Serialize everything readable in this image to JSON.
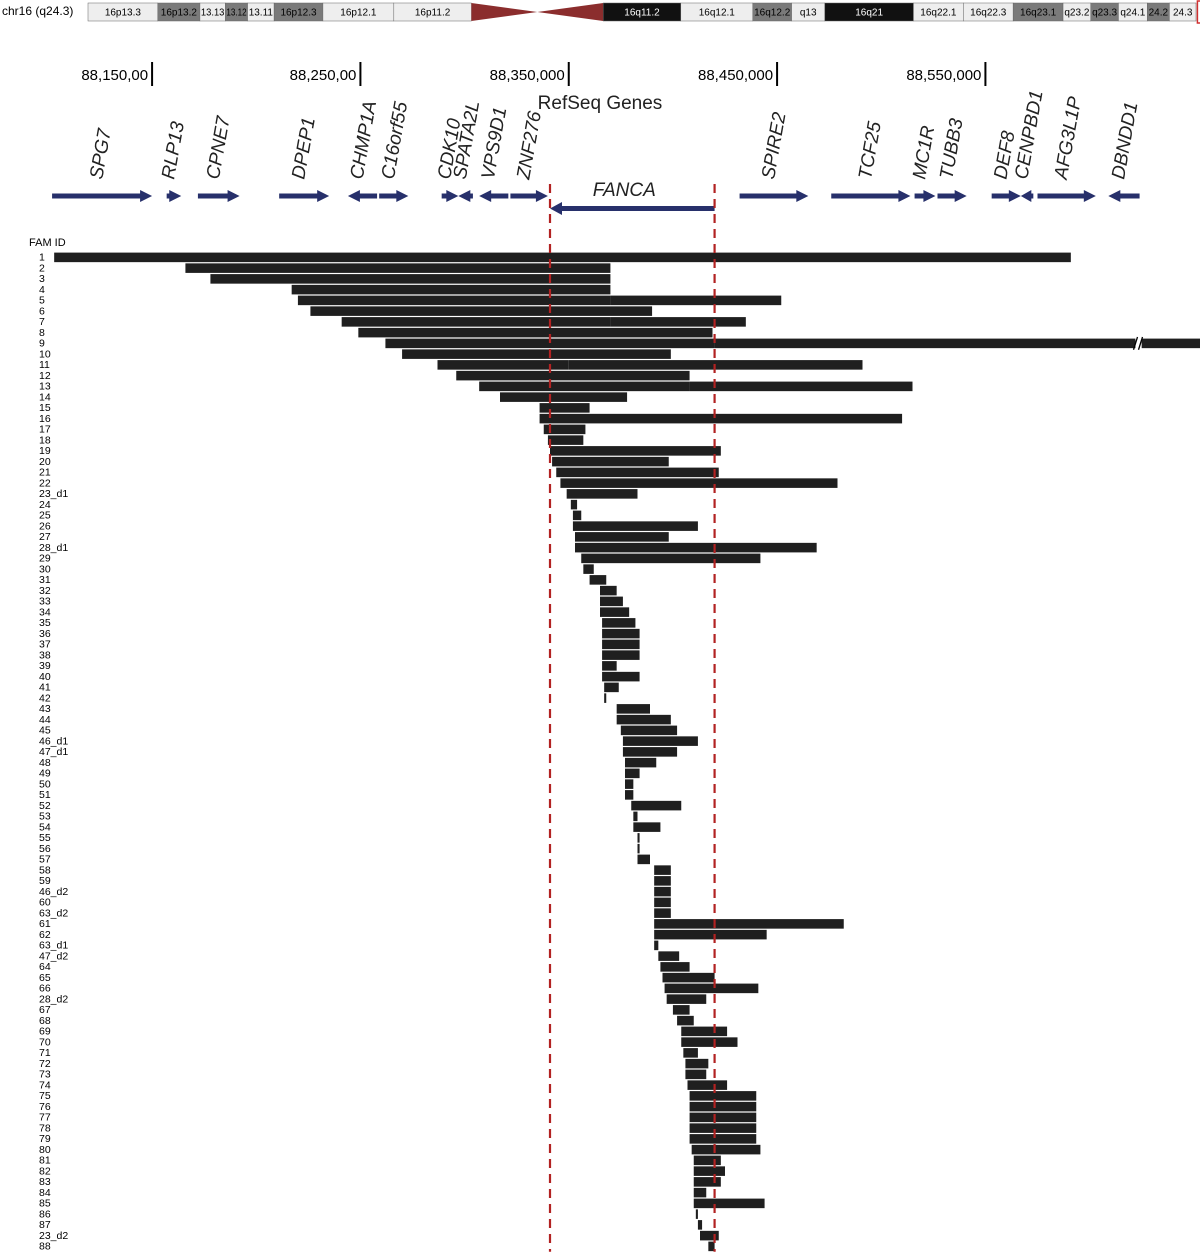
{
  "chart_data": {
    "type": "bar",
    "chromosome_label": "chr16 (q24.3)",
    "ideogram_bands": [
      {
        "name": "16p13.3",
        "start": 0,
        "end": 6.3,
        "stain": "white"
      },
      {
        "name": "16p13.2",
        "start": 6.3,
        "end": 10.1,
        "stain": "gray"
      },
      {
        "name": "13.13",
        "start": 10.1,
        "end": 12.4,
        "stain": "white"
      },
      {
        "name": "13.12",
        "start": 12.4,
        "end": 14.4,
        "stain": "gray"
      },
      {
        "name": "13.11",
        "start": 14.4,
        "end": 16.8,
        "stain": "white"
      },
      {
        "name": "16p12.3",
        "start": 16.8,
        "end": 21.2,
        "stain": "gray"
      },
      {
        "name": "16p12.1",
        "start": 21.2,
        "end": 27.6,
        "stain": "white"
      },
      {
        "name": "16p11.2",
        "start": 27.6,
        "end": 34.6,
        "stain": "white"
      },
      {
        "name": "",
        "start": 34.6,
        "end": 46.5,
        "stain": "centromere"
      },
      {
        "name": "16q11.2",
        "start": 46.5,
        "end": 53.5,
        "stain": "black"
      },
      {
        "name": "16q12.1",
        "start": 53.5,
        "end": 60.0,
        "stain": "white"
      },
      {
        "name": "16q12.2",
        "start": 60.0,
        "end": 63.5,
        "stain": "gray"
      },
      {
        "name": "q13",
        "start": 63.5,
        "end": 66.5,
        "stain": "white"
      },
      {
        "name": "16q21",
        "start": 66.5,
        "end": 74.5,
        "stain": "black"
      },
      {
        "name": "16q22.1",
        "start": 74.5,
        "end": 79.0,
        "stain": "white"
      },
      {
        "name": "16q22.3",
        "start": 79.0,
        "end": 83.5,
        "stain": "white"
      },
      {
        "name": "16q23.1",
        "start": 83.5,
        "end": 88.0,
        "stain": "gray"
      },
      {
        "name": "q23.2",
        "start": 88.0,
        "end": 90.5,
        "stain": "white"
      },
      {
        "name": "q23.3",
        "start": 90.5,
        "end": 93.0,
        "stain": "gray"
      },
      {
        "name": "q24.1",
        "start": 93.0,
        "end": 95.6,
        "stain": "white"
      },
      {
        "name": "24.2",
        "start": 95.6,
        "end": 97.6,
        "stain": "gray"
      },
      {
        "name": "24.3",
        "start": 97.6,
        "end": 100,
        "stain": "white"
      }
    ],
    "coordinate_ticks": [
      {
        "label": "88,150,00",
        "position": 88150000
      },
      {
        "label": "88,250,00",
        "position": 88250000
      },
      {
        "label": "88,350,000",
        "position": 88350000
      },
      {
        "label": "88,450,000",
        "position": 88450000
      },
      {
        "label": "88,550,000",
        "position": 88550000
      }
    ],
    "x_range": [
      88077000,
      88653000
    ],
    "track_title": "RefSeq Genes",
    "genes": [
      {
        "name": "SPG7",
        "start": 88102000,
        "end": 88150000,
        "strand": "+"
      },
      {
        "name": "RLP13",
        "start": 88157000,
        "end": 88164000,
        "strand": "+"
      },
      {
        "name": "CPNE7",
        "start": 88172000,
        "end": 88192000,
        "strand": "+"
      },
      {
        "name": "DPEP1",
        "start": 88211000,
        "end": 88235000,
        "strand": "+"
      },
      {
        "name": "CHMP1A",
        "start": 88244000,
        "end": 88258000,
        "strand": "-"
      },
      {
        "name": "C16orf55",
        "start": 88259000,
        "end": 88273000,
        "strand": "+"
      },
      {
        "name": "CDK10",
        "start": 88289000,
        "end": 88297000,
        "strand": "+"
      },
      {
        "name": "SPATA2L",
        "start": 88297000,
        "end": 88304000,
        "strand": "-"
      },
      {
        "name": "VPS9D1",
        "start": 88307000,
        "end": 88321000,
        "strand": "-"
      },
      {
        "name": "ZNF276",
        "start": 88322000,
        "end": 88340000,
        "strand": "+"
      },
      {
        "name": "FANCA",
        "start": 88341000,
        "end": 88420000,
        "strand": "-"
      },
      {
        "name": "SPIRE2",
        "start": 88432000,
        "end": 88465000,
        "strand": "+"
      },
      {
        "name": "TCF25",
        "start": 88476000,
        "end": 88514000,
        "strand": "+"
      },
      {
        "name": "MC1R",
        "start": 88516000,
        "end": 88526000,
        "strand": "+"
      },
      {
        "name": "TUBB3",
        "start": 88527000,
        "end": 88541000,
        "strand": "+"
      },
      {
        "name": "DEF8",
        "start": 88553000,
        "end": 88567000,
        "strand": "+"
      },
      {
        "name": "CENPBD1",
        "start": 88567000,
        "end": 88573000,
        "strand": "-"
      },
      {
        "name": "AFG3L1P",
        "start": 88575000,
        "end": 88603000,
        "strand": "+"
      },
      {
        "name": "DBNDD1",
        "start": 88609000,
        "end": 88624000,
        "strand": "-"
      }
    ],
    "reference_lines": [
      88341000,
      88420000
    ],
    "row_header": "FAM ID",
    "deletions": [
      {
        "id": "1",
        "segments": [
          [
            88103000,
            88591000
          ]
        ]
      },
      {
        "id": "2",
        "segments": [
          [
            88166000,
            88370000
          ]
        ]
      },
      {
        "id": "3",
        "segments": [
          [
            88178000,
            88370000
          ]
        ]
      },
      {
        "id": "4",
        "segments": [
          [
            88217000,
            88370000
          ]
        ]
      },
      {
        "id": "5",
        "segments": [
          [
            88220000,
            88370000
          ],
          [
            88370000,
            88452000
          ]
        ]
      },
      {
        "id": "6",
        "segments": [
          [
            88226000,
            88390000
          ]
        ]
      },
      {
        "id": "7",
        "segments": [
          [
            88241000,
            88370000
          ],
          [
            88370000,
            88435000
          ]
        ]
      },
      {
        "id": "8",
        "segments": [
          [
            88249000,
            88419000
          ]
        ]
      },
      {
        "id": "9",
        "segments": [
          [
            88262000,
            88420000
          ],
          [
            88420000,
            88622000
          ],
          [
            88625000,
            88653000
          ]
        ],
        "break_at": 88623000
      },
      {
        "id": "10",
        "segments": [
          [
            88270000,
            88399000
          ]
        ]
      },
      {
        "id": "11",
        "segments": [
          [
            88287000,
            88350000
          ],
          [
            88350000,
            88491000
          ]
        ]
      },
      {
        "id": "12",
        "segments": [
          [
            88296000,
            88408000
          ]
        ]
      },
      {
        "id": "13",
        "segments": [
          [
            88307000,
            88408000
          ],
          [
            88408000,
            88515000
          ]
        ]
      },
      {
        "id": "14",
        "segments": [
          [
            88317000,
            88378000
          ]
        ]
      },
      {
        "id": "15",
        "segments": [
          [
            88336000,
            88360000
          ]
        ]
      },
      {
        "id": "16",
        "segments": [
          [
            88336000,
            88510000
          ]
        ]
      },
      {
        "id": "17",
        "segments": [
          [
            88338000,
            88358000
          ]
        ]
      },
      {
        "id": "18",
        "segments": [
          [
            88340000,
            88357000
          ]
        ]
      },
      {
        "id": "19",
        "segments": [
          [
            88341000,
            88423000
          ]
        ]
      },
      {
        "id": "20",
        "segments": [
          [
            88342000,
            88398000
          ]
        ]
      },
      {
        "id": "21",
        "segments": [
          [
            88344000,
            88422000
          ]
        ]
      },
      {
        "id": "22",
        "segments": [
          [
            88346000,
            88479000
          ]
        ]
      },
      {
        "id": "23_d1",
        "segments": [
          [
            88349000,
            88383000
          ]
        ]
      },
      {
        "id": "24",
        "segments": [
          [
            88351000,
            88354000
          ]
        ]
      },
      {
        "id": "25",
        "segments": [
          [
            88352000,
            88356000
          ]
        ]
      },
      {
        "id": "26",
        "segments": [
          [
            88352000,
            88412000
          ]
        ]
      },
      {
        "id": "27",
        "segments": [
          [
            88353000,
            88398000
          ]
        ]
      },
      {
        "id": "28_d1",
        "segments": [
          [
            88353000,
            88469000
          ]
        ]
      },
      {
        "id": "29",
        "segments": [
          [
            88356000,
            88442000
          ]
        ]
      },
      {
        "id": "30",
        "segments": [
          [
            88357000,
            88362000
          ]
        ]
      },
      {
        "id": "31",
        "segments": [
          [
            88360000,
            88368000
          ]
        ]
      },
      {
        "id": "32",
        "segments": [
          [
            88365000,
            88373000
          ]
        ]
      },
      {
        "id": "33",
        "segments": [
          [
            88365000,
            88376000
          ]
        ]
      },
      {
        "id": "34",
        "segments": [
          [
            88365000,
            88379000
          ]
        ]
      },
      {
        "id": "35",
        "segments": [
          [
            88366000,
            88382000
          ]
        ]
      },
      {
        "id": "36",
        "segments": [
          [
            88366000,
            88384000
          ]
        ]
      },
      {
        "id": "37",
        "segments": [
          [
            88366000,
            88384000
          ]
        ]
      },
      {
        "id": "38",
        "segments": [
          [
            88366000,
            88384000
          ]
        ]
      },
      {
        "id": "39",
        "segments": [
          [
            88366000,
            88373000
          ]
        ]
      },
      {
        "id": "40",
        "segments": [
          [
            88366000,
            88384000
          ]
        ]
      },
      {
        "id": "41",
        "segments": [
          [
            88367000,
            88374000
          ]
        ]
      },
      {
        "id": "42",
        "segments": [
          [
            88367000,
            88368000
          ]
        ]
      },
      {
        "id": "43",
        "segments": [
          [
            88373000,
            88389000
          ]
        ]
      },
      {
        "id": "44",
        "segments": [
          [
            88373000,
            88399000
          ]
        ]
      },
      {
        "id": "45",
        "segments": [
          [
            88375000,
            88402000
          ]
        ]
      },
      {
        "id": "46_d1",
        "segments": [
          [
            88376000,
            88412000
          ]
        ]
      },
      {
        "id": "47_d1",
        "segments": [
          [
            88376000,
            88402000
          ]
        ]
      },
      {
        "id": "48",
        "segments": [
          [
            88377000,
            88392000
          ]
        ]
      },
      {
        "id": "49",
        "segments": [
          [
            88377000,
            88384000
          ]
        ]
      },
      {
        "id": "50",
        "segments": [
          [
            88377000,
            88381000
          ]
        ]
      },
      {
        "id": "51",
        "segments": [
          [
            88377000,
            88381000
          ]
        ]
      },
      {
        "id": "52",
        "segments": [
          [
            88380000,
            88404000
          ]
        ]
      },
      {
        "id": "53",
        "segments": [
          [
            88381000,
            88383000
          ]
        ]
      },
      {
        "id": "54",
        "segments": [
          [
            88381000,
            88394000
          ]
        ]
      },
      {
        "id": "55",
        "segments": [
          [
            88383000,
            88384000
          ]
        ]
      },
      {
        "id": "56",
        "segments": [
          [
            88383000,
            88384000
          ]
        ]
      },
      {
        "id": "57",
        "segments": [
          [
            88383000,
            88389000
          ]
        ]
      },
      {
        "id": "58",
        "segments": [
          [
            88391000,
            88399000
          ]
        ]
      },
      {
        "id": "59",
        "segments": [
          [
            88391000,
            88399000
          ]
        ]
      },
      {
        "id": "46_d2",
        "segments": [
          [
            88391000,
            88399000
          ]
        ]
      },
      {
        "id": "60",
        "segments": [
          [
            88391000,
            88399000
          ]
        ]
      },
      {
        "id": "63_d2",
        "segments": [
          [
            88391000,
            88399000
          ]
        ]
      },
      {
        "id": "61",
        "segments": [
          [
            88391000,
            88482000
          ]
        ]
      },
      {
        "id": "62",
        "segments": [
          [
            88391000,
            88445000
          ]
        ]
      },
      {
        "id": "63_d1",
        "segments": [
          [
            88391000,
            88393000
          ]
        ]
      },
      {
        "id": "47_d2",
        "segments": [
          [
            88393000,
            88403000
          ]
        ]
      },
      {
        "id": "64",
        "segments": [
          [
            88394000,
            88408000
          ]
        ]
      },
      {
        "id": "65",
        "segments": [
          [
            88395000,
            88420000
          ]
        ]
      },
      {
        "id": "66",
        "segments": [
          [
            88396000,
            88441000
          ]
        ]
      },
      {
        "id": "28_d2",
        "segments": [
          [
            88397000,
            88416000
          ]
        ]
      },
      {
        "id": "67",
        "segments": [
          [
            88400000,
            88408000
          ]
        ]
      },
      {
        "id": "68",
        "segments": [
          [
            88402000,
            88410000
          ]
        ]
      },
      {
        "id": "69",
        "segments": [
          [
            88404000,
            88426000
          ]
        ]
      },
      {
        "id": "70",
        "segments": [
          [
            88404000,
            88431000
          ]
        ]
      },
      {
        "id": "71",
        "segments": [
          [
            88405000,
            88412000
          ]
        ]
      },
      {
        "id": "72",
        "segments": [
          [
            88406000,
            88417000
          ]
        ]
      },
      {
        "id": "73",
        "segments": [
          [
            88406000,
            88416000
          ]
        ]
      },
      {
        "id": "74",
        "segments": [
          [
            88407000,
            88426000
          ]
        ]
      },
      {
        "id": "75",
        "segments": [
          [
            88408000,
            88440000
          ]
        ]
      },
      {
        "id": "76",
        "segments": [
          [
            88408000,
            88440000
          ]
        ]
      },
      {
        "id": "77",
        "segments": [
          [
            88408000,
            88440000
          ]
        ]
      },
      {
        "id": "78",
        "segments": [
          [
            88408000,
            88440000
          ]
        ]
      },
      {
        "id": "79",
        "segments": [
          [
            88408000,
            88440000
          ]
        ]
      },
      {
        "id": "80",
        "segments": [
          [
            88409000,
            88442000
          ]
        ]
      },
      {
        "id": "81",
        "segments": [
          [
            88410000,
            88423000
          ]
        ]
      },
      {
        "id": "82",
        "segments": [
          [
            88410000,
            88425000
          ]
        ]
      },
      {
        "id": "83",
        "segments": [
          [
            88410000,
            88423000
          ]
        ]
      },
      {
        "id": "84",
        "segments": [
          [
            88410000,
            88416000
          ]
        ]
      },
      {
        "id": "85",
        "segments": [
          [
            88410000,
            88444000
          ]
        ]
      },
      {
        "id": "86",
        "segments": [
          [
            88411000,
            88412000
          ]
        ]
      },
      {
        "id": "87",
        "segments": [
          [
            88412000,
            88414000
          ]
        ]
      },
      {
        "id": "23_d2",
        "segments": [
          [
            88413000,
            88422000
          ]
        ]
      },
      {
        "id": "88",
        "segments": [
          [
            88417000,
            88420000
          ]
        ]
      }
    ],
    "colors": {
      "gene": "#27306b",
      "deletion": "#1f1f1f",
      "reference_line": "#b22222",
      "band_black": "#111111",
      "band_gray": "#7a7a7a",
      "band_white": "#eeeeee",
      "centromere": "#8b2d2d",
      "highlight": "#d03030"
    }
  }
}
